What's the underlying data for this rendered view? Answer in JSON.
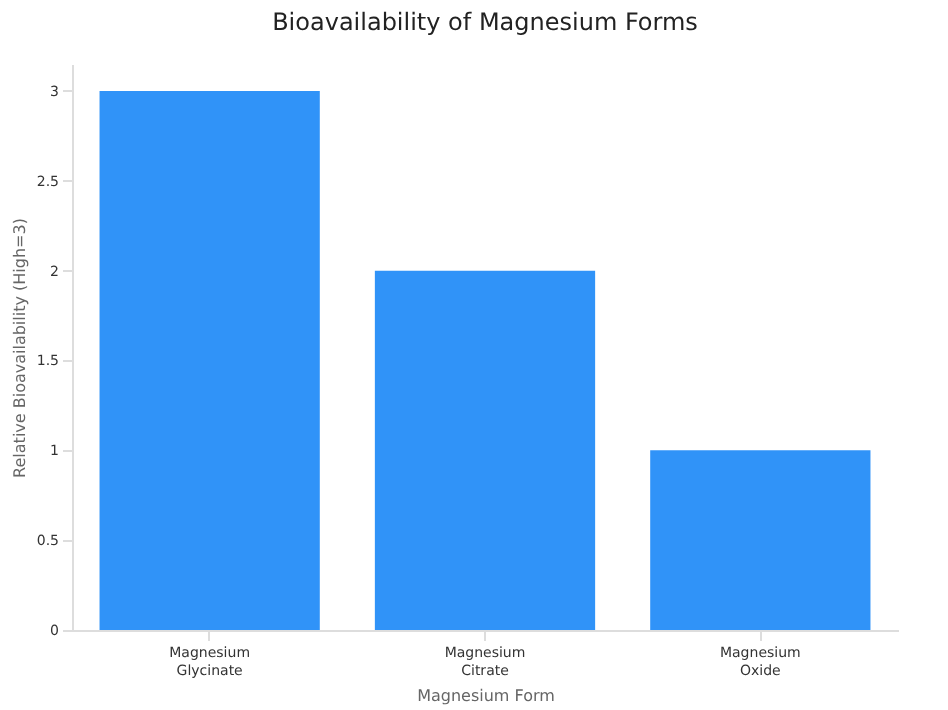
{
  "chart_data": {
    "type": "bar",
    "title": "Bioavailability of Magnesium Forms",
    "xlabel": "Magnesium Form",
    "ylabel": "Relative Bioavailability (High=3)",
    "categories": [
      "Magnesium\nGlycinate",
      "Magnesium\nCitrate",
      "Magnesium\nOxide"
    ],
    "values": [
      3,
      2,
      1
    ],
    "color": "#3093f8",
    "ylim": [
      0,
      3.15
    ],
    "yticks": [
      0,
      0.5,
      1,
      1.5,
      2,
      2.5,
      3
    ],
    "grid": false
  }
}
